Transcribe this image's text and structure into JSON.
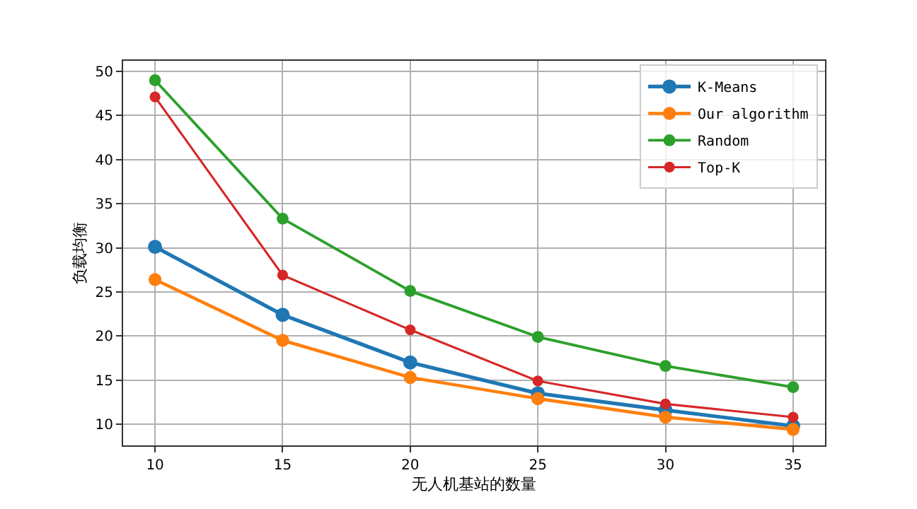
{
  "chart_data": {
    "type": "line",
    "xlabel": "无人机基站的数量",
    "ylabel": "负载均衡",
    "x": [
      10,
      15,
      20,
      25,
      30,
      35
    ],
    "series": [
      {
        "name": "K-Means",
        "color": "#1f77b4",
        "values": [
          30.1,
          22.4,
          17.0,
          13.5,
          11.6,
          9.8
        ]
      },
      {
        "name": "Our algorithm",
        "color": "#ff7f0e",
        "values": [
          26.4,
          19.5,
          15.3,
          12.9,
          10.8,
          9.4
        ]
      },
      {
        "name": "Random",
        "color": "#2ca02c",
        "values": [
          49.0,
          33.3,
          25.1,
          19.9,
          16.6,
          14.2
        ]
      },
      {
        "name": "Top-K",
        "color": "#d62728",
        "values": [
          47.1,
          26.9,
          20.7,
          14.9,
          12.3,
          10.8
        ]
      }
    ],
    "xlim": [
      8.75,
      36.25
    ],
    "xticks": [
      10,
      15,
      20,
      25,
      30,
      35
    ],
    "ylim": [
      7.6,
      51.2
    ],
    "yticks": [
      10,
      15,
      20,
      25,
      30,
      35,
      40,
      45,
      50
    ],
    "grid": true,
    "legend": "top right",
    "marker": "circle",
    "line_style": "solid"
  }
}
